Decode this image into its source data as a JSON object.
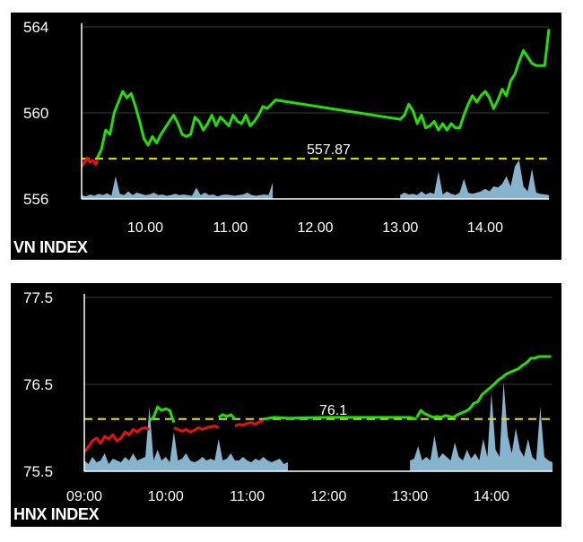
{
  "colors": {
    "background": "#000000",
    "axis": "#ffffff",
    "grid": "#3a3a3a",
    "up": "#22e000",
    "down": "#e81010",
    "reference": "#e6e600",
    "volume": "#9fd3f0",
    "label": "#ffffff",
    "tick_on_light": "#000000"
  },
  "chart_data": [
    {
      "type": "line",
      "title": "VN INDEX",
      "reference": {
        "value": 557.87,
        "label": "557.87"
      },
      "ylim": [
        556,
        564
      ],
      "y_ticks": [
        564,
        560,
        556
      ],
      "y_tick_labels": [
        "564",
        "560",
        "556"
      ],
      "x_range": [
        "09:15",
        "14:45"
      ],
      "x_ticks": [
        "10:00",
        "11:00",
        "12:00",
        "13:00",
        "14:00"
      ],
      "x_tick_labels": [
        "10.00",
        "11.00",
        "12.00",
        "13.00",
        "14.00"
      ],
      "grid": "horizontal",
      "series": [
        {
          "color": "#e81010",
          "x": [
            "09:15",
            "09:17",
            "09:19",
            "09:21",
            "09:23",
            "09:25",
            "09:26"
          ],
          "y": [
            557.5,
            557.7,
            557.9,
            557.7,
            557.8,
            557.6,
            557.8
          ]
        },
        {
          "color": "#22e000",
          "x": [
            "09:26",
            "09:29",
            "09:32",
            "09:35",
            "09:38",
            "09:41",
            "09:44",
            "09:47",
            "09:50",
            "09:53",
            "09:56",
            "09:59",
            "10:02",
            "10:05",
            "10:08",
            "10:11",
            "10:14",
            "10:17",
            "10:20",
            "10:23",
            "10:26",
            "10:29",
            "10:32",
            "10:35",
            "10:38",
            "10:41",
            "10:44",
            "10:47",
            "10:50",
            "10:53",
            "10:56",
            "10:59",
            "11:02",
            "11:05",
            "11:08",
            "11:11",
            "11:14",
            "11:17",
            "11:20",
            "11:23",
            "11:26",
            "11:29",
            "11:32",
            "13:00",
            "13:03",
            "13:06",
            "13:09",
            "13:12",
            "13:15",
            "13:18",
            "13:21",
            "13:24",
            "13:27",
            "13:30",
            "13:33",
            "13:36",
            "13:39",
            "13:42",
            "13:45",
            "13:48",
            "13:51",
            "13:54",
            "13:57",
            "14:00",
            "14:03",
            "14:06",
            "14:09",
            "14:12",
            "14:15",
            "14:18",
            "14:21",
            "14:24",
            "14:27",
            "14:30",
            "14:33",
            "14:36",
            "14:39",
            "14:42",
            "14:45"
          ],
          "y": [
            557.9,
            558.3,
            559.2,
            559.0,
            560.0,
            560.5,
            561.0,
            560.7,
            560.9,
            560.3,
            559.6,
            558.8,
            558.5,
            558.9,
            558.6,
            559.0,
            559.3,
            559.6,
            559.9,
            559.5,
            559.0,
            558.9,
            559.0,
            559.8,
            559.6,
            559.2,
            559.5,
            559.9,
            559.4,
            559.8,
            559.6,
            559.4,
            559.9,
            559.6,
            559.5,
            559.9,
            559.4,
            559.6,
            559.9,
            560.3,
            560.2,
            560.4,
            560.6,
            559.7,
            559.9,
            560.4,
            560.1,
            559.5,
            559.9,
            559.3,
            559.4,
            559.6,
            559.2,
            559.5,
            559.2,
            559.5,
            559.3,
            559.3,
            559.9,
            560.4,
            560.8,
            560.5,
            560.8,
            561.0,
            560.7,
            560.2,
            560.6,
            561.1,
            560.8,
            561.5,
            561.8,
            562.4,
            562.9,
            562.6,
            562.3,
            562.2,
            562.2,
            562.2,
            563.9
          ]
        }
      ],
      "volume": {
        "color": "#9fd3f0",
        "x": [
          "09:15",
          "09:18",
          "09:21",
          "09:24",
          "09:27",
          "09:30",
          "09:33",
          "09:36",
          "09:39",
          "09:42",
          "09:45",
          "09:48",
          "09:51",
          "09:54",
          "09:57",
          "10:00",
          "10:03",
          "10:06",
          "10:09",
          "10:12",
          "10:15",
          "10:18",
          "10:21",
          "10:24",
          "10:27",
          "10:30",
          "10:33",
          "10:36",
          "10:39",
          "10:42",
          "10:45",
          "10:48",
          "10:51",
          "10:54",
          "10:57",
          "11:00",
          "11:03",
          "11:06",
          "11:09",
          "11:12",
          "11:15",
          "11:18",
          "11:21",
          "11:24",
          "11:27",
          "11:30",
          "13:00",
          "13:03",
          "13:06",
          "13:09",
          "13:12",
          "13:15",
          "13:18",
          "13:21",
          "13:24",
          "13:27",
          "13:30",
          "13:33",
          "13:36",
          "13:39",
          "13:42",
          "13:45",
          "13:48",
          "13:51",
          "13:54",
          "13:57",
          "14:00",
          "14:03",
          "14:06",
          "14:09",
          "14:12",
          "14:15",
          "14:18",
          "14:21",
          "14:24",
          "14:27",
          "14:30",
          "14:33",
          "14:36",
          "14:39",
          "14:42",
          "14:45"
        ],
        "values": [
          0.3,
          0.2,
          0.35,
          0.25,
          0.4,
          0.3,
          0.45,
          0.25,
          1.8,
          0.4,
          0.3,
          0.6,
          0.3,
          0.5,
          0.4,
          0.3,
          0.35,
          0.5,
          0.3,
          0.35,
          0.25,
          0.3,
          0.4,
          0.3,
          0.35,
          0.3,
          0.25,
          0.9,
          0.3,
          0.5,
          0.3,
          0.35,
          0.2,
          0.3,
          0.35,
          0.3,
          0.25,
          0.3,
          0.35,
          0.5,
          0.3,
          0.25,
          0.3,
          0.35,
          0.3,
          1.3,
          0.3,
          0.5,
          0.35,
          0.4,
          0.3,
          0.6,
          0.35,
          0.5,
          0.4,
          2.2,
          0.35,
          0.6,
          0.4,
          0.3,
          0.5,
          1.6,
          0.5,
          0.4,
          0.5,
          0.6,
          0.8,
          0.6,
          1.0,
          0.9,
          1.2,
          1.8,
          1.0,
          2.6,
          3.1,
          1.0,
          0.6,
          2.4,
          0.5,
          0.4,
          0.35,
          0.3
        ]
      }
    },
    {
      "type": "line",
      "title": "HNX INDEX",
      "reference": {
        "value": 76.1,
        "label": "76.1"
      },
      "ylim": [
        75.5,
        77.5
      ],
      "y_ticks": [
        77.5,
        76.5,
        75.5
      ],
      "y_tick_labels": [
        "77.5",
        "76.5",
        "75.5"
      ],
      "x_range": [
        "09:00",
        "14:45"
      ],
      "x_ticks": [
        "09:00",
        "10:00",
        "11:00",
        "12:00",
        "13:00",
        "14:00"
      ],
      "x_tick_labels": [
        "09:00",
        "10:00",
        "11:00",
        "12:00",
        "13:00",
        "14:00"
      ],
      "grid": "horizontal",
      "series": [
        {
          "color": "#e81010",
          "x": [
            "09:00",
            "09:03",
            "09:06",
            "09:09",
            "09:12",
            "09:15",
            "09:18",
            "09:21",
            "09:24",
            "09:27",
            "09:30",
            "09:33",
            "09:36",
            "09:39",
            "09:42",
            "09:45",
            "09:48"
          ],
          "y": [
            75.72,
            75.78,
            75.85,
            75.88,
            75.82,
            75.9,
            75.87,
            75.92,
            75.85,
            75.88,
            75.95,
            75.92,
            75.98,
            75.95,
            75.99,
            76.0,
            75.98
          ]
        },
        {
          "color": "#22e000",
          "x": [
            "09:48",
            "09:51",
            "09:54",
            "09:57",
            "10:00",
            "10:03",
            "10:06"
          ],
          "y": [
            76.08,
            76.12,
            76.24,
            76.2,
            76.22,
            76.2,
            76.06
          ]
        },
        {
          "color": "#e81010",
          "x": [
            "10:06",
            "10:09",
            "10:12",
            "10:15",
            "10:18",
            "10:21",
            "10:24",
            "10:27",
            "10:30",
            "10:33",
            "10:36",
            "10:39"
          ],
          "y": [
            76.0,
            75.98,
            75.96,
            75.98,
            75.95,
            75.97,
            76.0,
            75.98,
            76.0,
            76.01,
            76.02,
            76.0
          ]
        },
        {
          "color": "#22e000",
          "x": [
            "10:39",
            "10:42",
            "10:45",
            "10:48",
            "10:51"
          ],
          "y": [
            76.12,
            76.15,
            76.13,
            76.15,
            76.1
          ]
        },
        {
          "color": "#e81010",
          "x": [
            "10:51",
            "10:54",
            "10:57",
            "11:00",
            "11:03",
            "11:06",
            "11:09",
            "11:12"
          ],
          "y": [
            76.02,
            76.04,
            76.03,
            76.05,
            76.06,
            76.04,
            76.07,
            76.08
          ]
        },
        {
          "color": "#22e000",
          "x": [
            "11:12",
            "11:20",
            "11:30",
            "12:00",
            "12:30",
            "13:00",
            "13:05"
          ],
          "y": [
            76.1,
            76.12,
            76.11,
            76.12,
            76.12,
            76.12,
            76.1
          ]
        },
        {
          "color": "#22e000",
          "x": [
            "13:05",
            "13:08",
            "13:11",
            "13:14",
            "13:17",
            "13:20",
            "13:23",
            "13:26",
            "13:29",
            "13:32",
            "13:35",
            "13:38",
            "13:41",
            "13:44",
            "13:47",
            "13:50",
            "13:53",
            "13:56",
            "13:59",
            "14:02",
            "14:05",
            "14:08",
            "14:11",
            "14:14",
            "14:17",
            "14:20",
            "14:23",
            "14:26",
            "14:29",
            "14:32",
            "14:35",
            "14:38",
            "14:41",
            "14:44"
          ],
          "y": [
            76.12,
            76.2,
            76.16,
            76.14,
            76.12,
            76.13,
            76.12,
            76.14,
            76.13,
            76.12,
            76.15,
            76.17,
            76.19,
            76.22,
            76.28,
            76.3,
            76.38,
            76.42,
            76.46,
            76.5,
            76.55,
            76.58,
            76.62,
            76.64,
            76.66,
            76.68,
            76.72,
            76.75,
            76.8,
            76.8,
            76.82,
            76.82,
            76.82,
            76.82
          ]
        }
      ],
      "volume": {
        "color": "#9fd3f0",
        "x": [
          "09:00",
          "09:03",
          "09:06",
          "09:09",
          "09:12",
          "09:15",
          "09:18",
          "09:21",
          "09:24",
          "09:27",
          "09:30",
          "09:33",
          "09:36",
          "09:39",
          "09:42",
          "09:45",
          "09:48",
          "09:51",
          "09:54",
          "09:57",
          "10:00",
          "10:03",
          "10:06",
          "10:09",
          "10:12",
          "10:15",
          "10:18",
          "10:21",
          "10:24",
          "10:27",
          "10:30",
          "10:33",
          "10:36",
          "10:39",
          "10:42",
          "10:45",
          "10:48",
          "10:51",
          "10:54",
          "10:57",
          "11:00",
          "11:03",
          "11:06",
          "11:09",
          "11:12",
          "11:15",
          "11:18",
          "11:21",
          "11:24",
          "11:27",
          "11:30",
          "13:00",
          "13:03",
          "13:06",
          "13:09",
          "13:12",
          "13:15",
          "13:18",
          "13:21",
          "13:24",
          "13:27",
          "13:30",
          "13:33",
          "13:36",
          "13:39",
          "13:42",
          "13:45",
          "13:48",
          "13:51",
          "13:54",
          "13:57",
          "14:00",
          "14:03",
          "14:06",
          "14:09",
          "14:12",
          "14:15",
          "14:18",
          "14:21",
          "14:24",
          "14:27",
          "14:30",
          "14:33",
          "14:36",
          "14:39",
          "14:42",
          "14:45"
        ],
        "values": [
          0.3,
          0.2,
          0.4,
          0.25,
          0.3,
          0.5,
          0.2,
          0.35,
          0.3,
          0.25,
          0.4,
          0.3,
          0.5,
          0.3,
          0.35,
          0.4,
          1.8,
          0.3,
          0.6,
          0.3,
          0.4,
          0.25,
          1.1,
          0.3,
          0.35,
          0.5,
          0.3,
          0.25,
          0.3,
          0.4,
          0.3,
          0.35,
          0.3,
          0.9,
          0.3,
          0.35,
          0.5,
          0.3,
          0.3,
          0.4,
          0.3,
          0.25,
          0.35,
          0.3,
          0.4,
          0.3,
          0.25,
          0.3,
          0.35,
          0.2,
          0.25,
          0.3,
          0.35,
          0.7,
          0.3,
          0.4,
          0.3,
          1.0,
          0.35,
          0.5,
          0.4,
          0.3,
          0.8,
          0.4,
          0.3,
          0.6,
          0.35,
          0.5,
          0.3,
          0.9,
          0.4,
          2.2,
          0.6,
          0.4,
          2.5,
          1.0,
          0.5,
          1.2,
          0.6,
          0.4,
          0.9,
          0.4,
          0.3,
          1.8,
          0.4,
          0.3,
          0.25
        ]
      }
    }
  ]
}
